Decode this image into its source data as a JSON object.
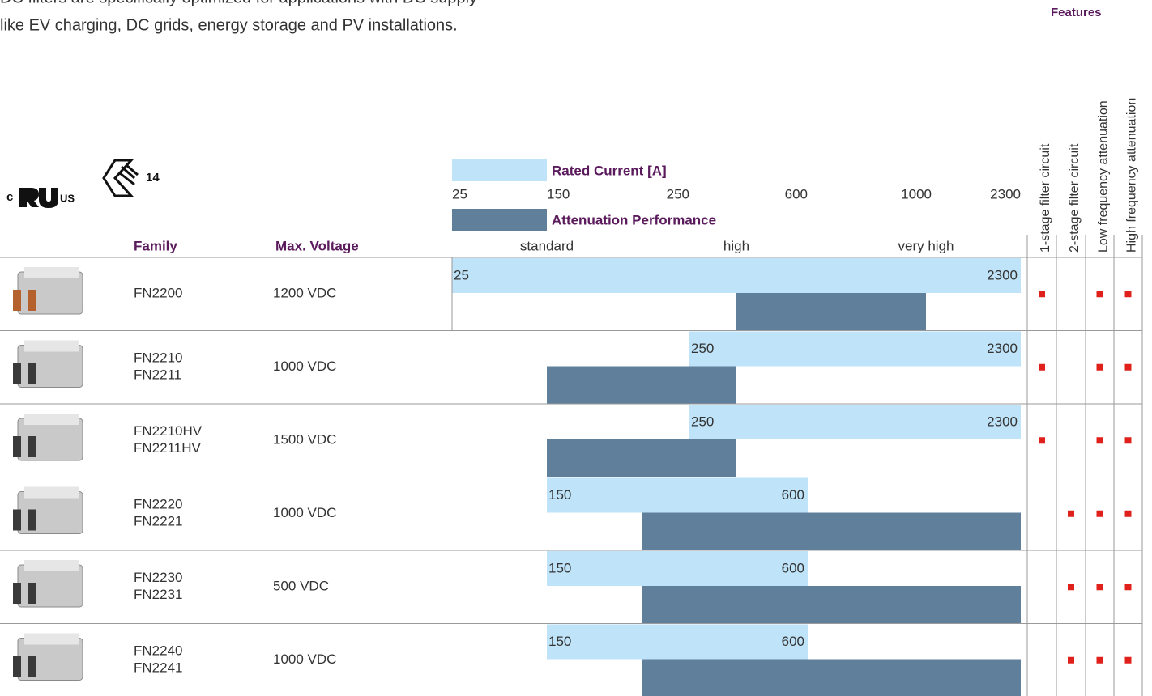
{
  "intro": [
    "DC filters are specifically optimized for applications with DC supply",
    "like EV charging, DC grids, energy storage and PV installations."
  ],
  "logos": [
    "c",
    "US",
    "14"
  ],
  "features_title": "Features",
  "features": [
    "1-stage filter circuit",
    "2-stage filter circuit",
    "Low frequency attenuation",
    "High frequency attenuation"
  ],
  "legend": {
    "current": "Rated Current [A]",
    "attenuation": "Attenuation Performance"
  },
  "current_ticks": [
    25,
    150,
    250,
    600,
    1000,
    2300
  ],
  "attenuation_ticks": [
    {
      "value": 1,
      "label": "standard"
    },
    {
      "value": 2,
      "label": "high"
    },
    {
      "value": 3,
      "label": "very high"
    }
  ],
  "attenuation_lim": [
    0.5,
    3.5
  ],
  "columns": {
    "family": "Family",
    "voltage": "Max. Voltage"
  },
  "rows": [
    {
      "family": [
        "FN2200"
      ],
      "voltage": "1200 VDC",
      "current": [
        25,
        2300
      ],
      "attenuation": [
        2,
        3
      ],
      "features": [
        true,
        false,
        true,
        true
      ]
    },
    {
      "family": [
        "FN2210",
        "FN2211"
      ],
      "voltage": "1000 VDC",
      "current": [
        250,
        2300
      ],
      "attenuation": [
        1,
        2
      ],
      "features": [
        true,
        false,
        true,
        true
      ]
    },
    {
      "family": [
        "FN2210HV",
        "FN2211HV"
      ],
      "voltage": "1500 VDC",
      "current": [
        250,
        2300
      ],
      "attenuation": [
        1,
        2
      ],
      "features": [
        true,
        false,
        true,
        true
      ]
    },
    {
      "family": [
        "FN2220",
        "FN2221"
      ],
      "voltage": "1000 VDC",
      "current": [
        150,
        600
      ],
      "attenuation": [
        1.5,
        3.5
      ],
      "features": [
        false,
        true,
        true,
        true
      ]
    },
    {
      "family": [
        "FN2230",
        "FN2231"
      ],
      "voltage": "500 VDC",
      "current": [
        150,
        600
      ],
      "attenuation": [
        1.5,
        3.5
      ],
      "features": [
        false,
        true,
        true,
        true
      ]
    },
    {
      "family": [
        "FN2240",
        "FN2241"
      ],
      "voltage": "1000 VDC",
      "current": [
        150,
        600
      ],
      "attenuation": [
        1.5,
        3.5
      ],
      "features": [
        false,
        true,
        true,
        true
      ]
    }
  ]
}
